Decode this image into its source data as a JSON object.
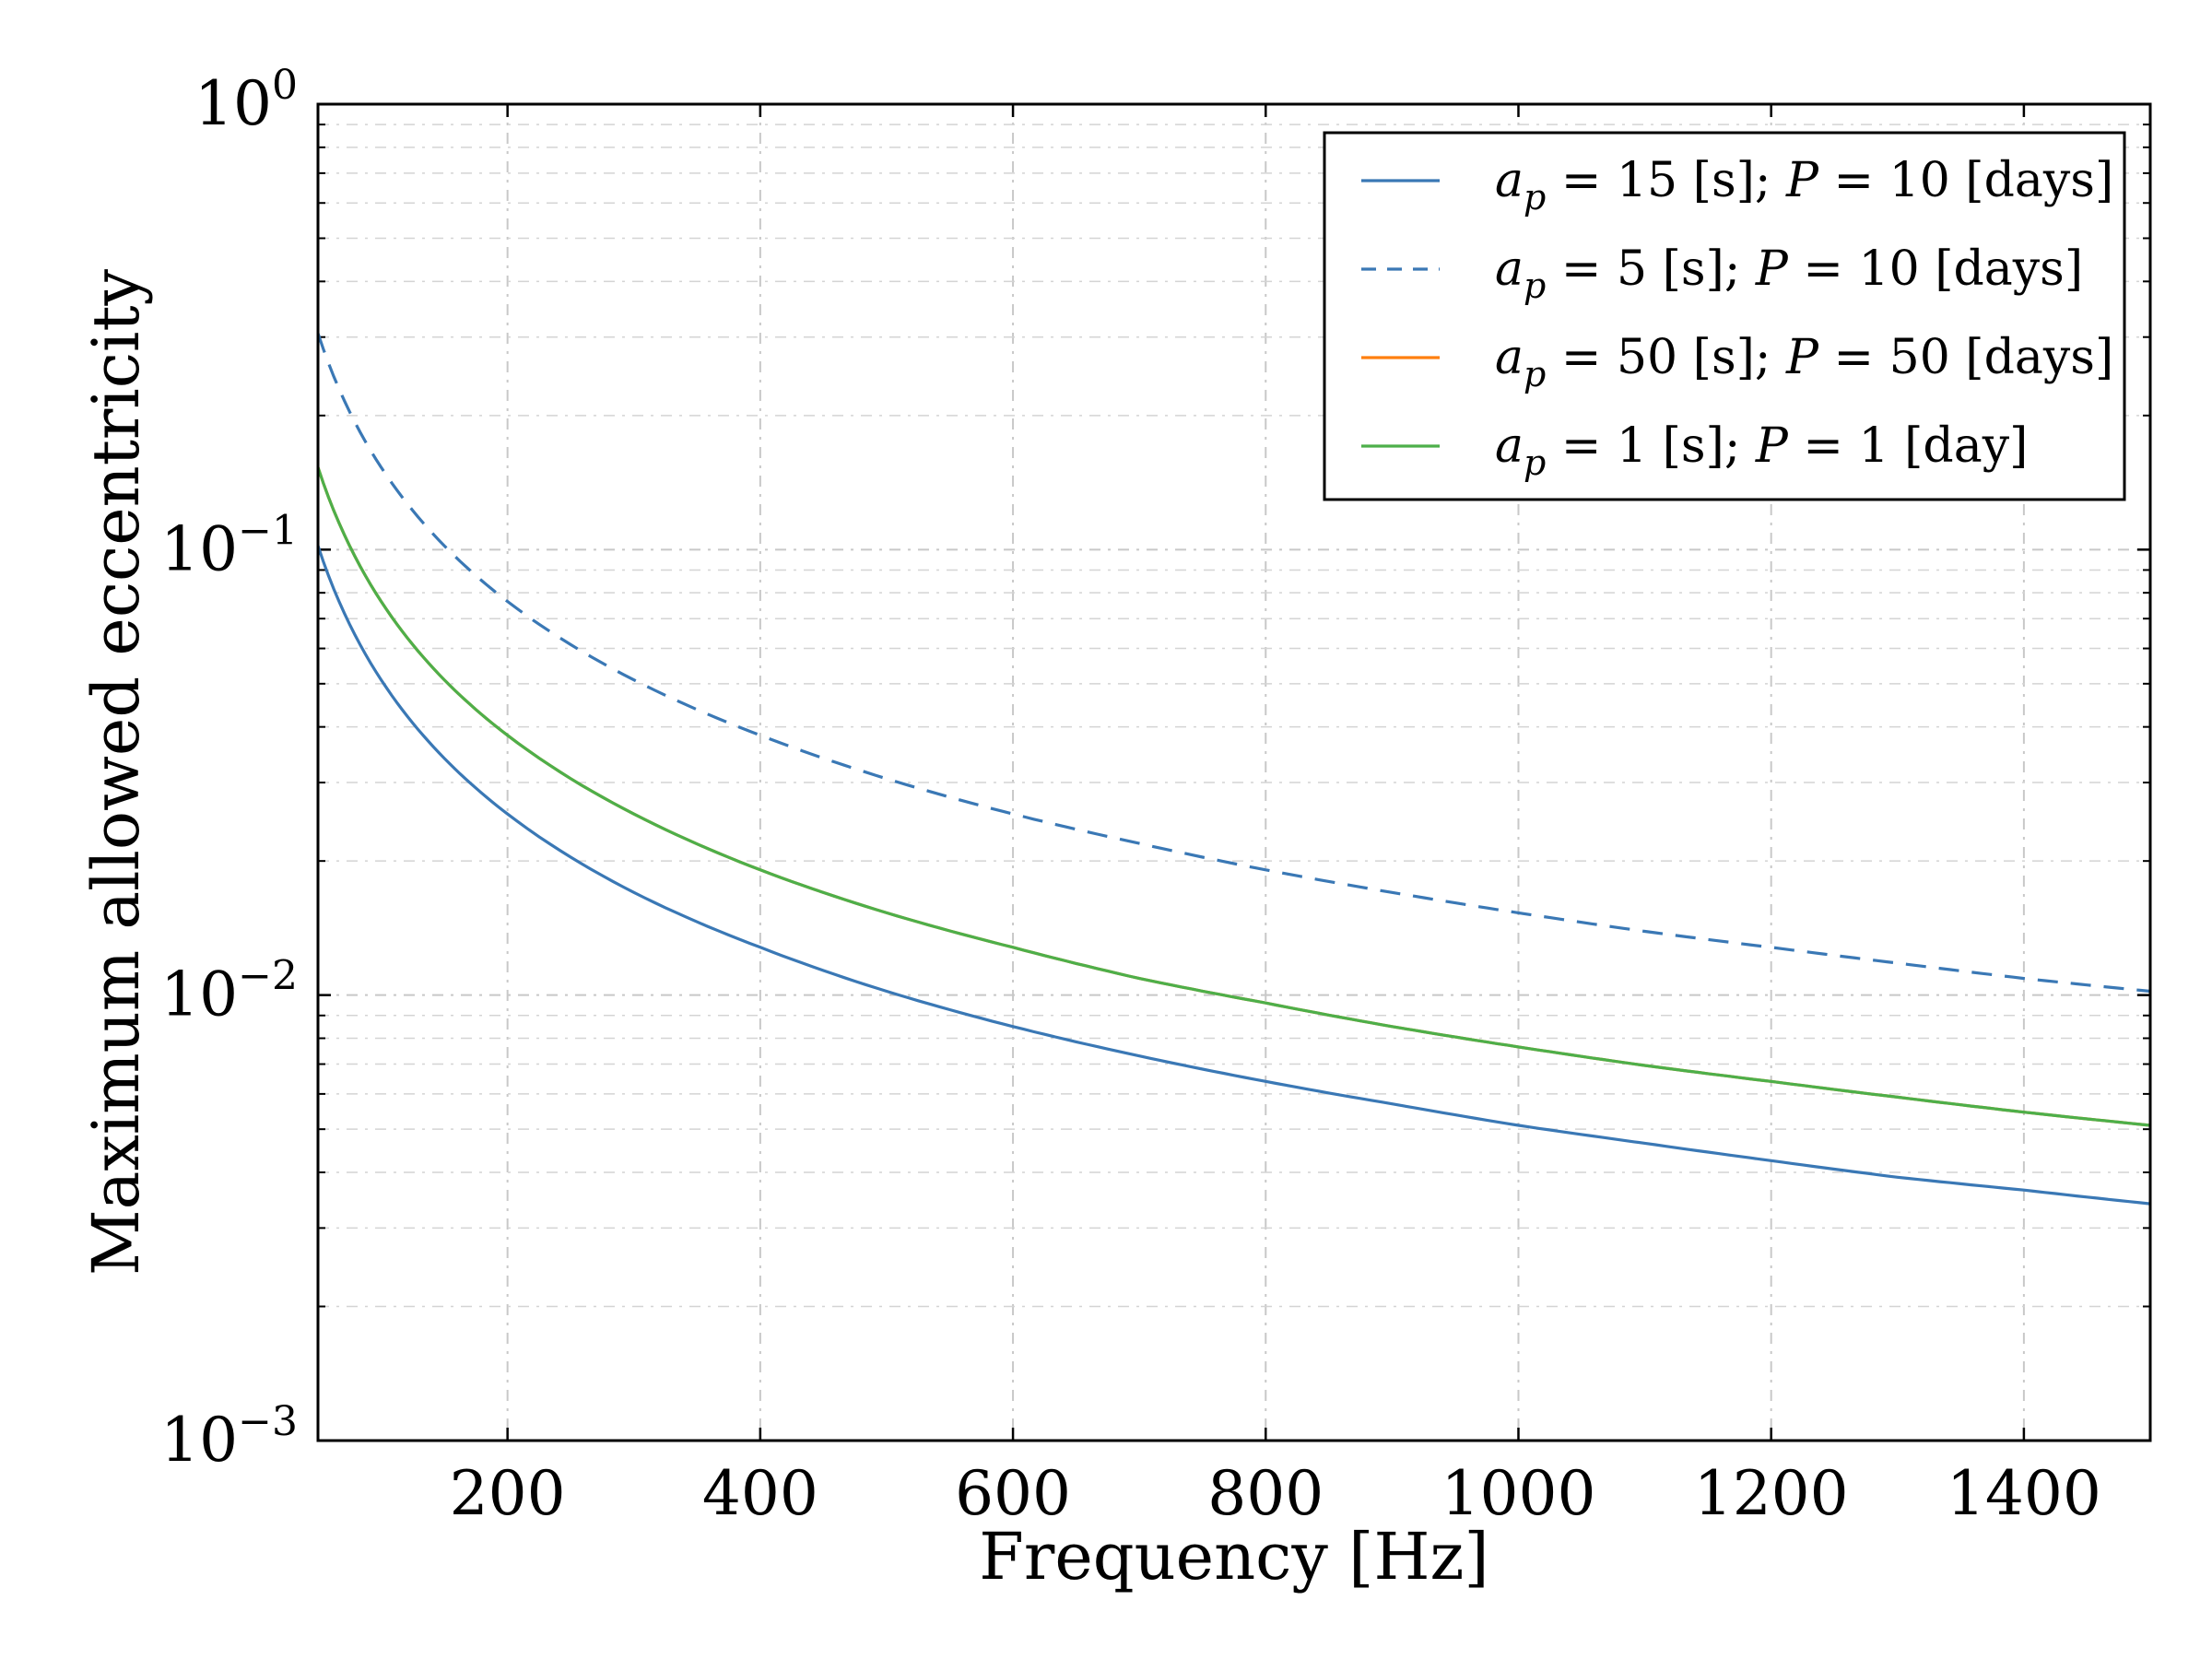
{
  "chart_data": {
    "type": "line",
    "title": "",
    "xlabel": "Frequency [Hz]",
    "ylabel": "Maximum allowed eccentricity",
    "xscale": "linear",
    "yscale": "log",
    "xlim": [
      50,
      1500
    ],
    "ylim": [
      0.001,
      1
    ],
    "grid": true,
    "legend_location": "top-right",
    "x_ticks": [
      {
        "value": 200,
        "label": "200"
      },
      {
        "value": 400,
        "label": "400"
      },
      {
        "value": 600,
        "label": "600"
      },
      {
        "value": 800,
        "label": "800"
      },
      {
        "value": 1000,
        "label": "1000"
      },
      {
        "value": 1200,
        "label": "1200"
      },
      {
        "value": 1400,
        "label": "1400"
      }
    ],
    "y_ticks": [
      {
        "value": 0.001,
        "base": "10",
        "exp": "−3"
      },
      {
        "value": 0.01,
        "base": "10",
        "exp": "−2"
      },
      {
        "value": 0.1,
        "base": "10",
        "exp": "−1"
      },
      {
        "value": 1,
        "base": "10",
        "exp": "0"
      }
    ],
    "x": [
      50,
      100,
      150,
      200,
      300,
      400,
      500,
      600,
      700,
      800,
      900,
      1000,
      1100,
      1200,
      1300,
      1400,
      1500
    ],
    "series": [
      {
        "name": "a_p = 15 [s]; P = 10 [days]",
        "legend": {
          "var1": "a",
          "sub": "p",
          "eq1": " = 15 [s]; ",
          "var2": "P",
          "eq2": " = 10 [days]"
        },
        "color": "#3a78b5",
        "dash": "solid",
        "values": [
          0.102,
          0.051,
          0.034,
          0.0255,
          0.017,
          0.0128,
          0.0102,
          0.0085,
          0.0073,
          0.0064,
          0.0057,
          0.0051,
          0.00465,
          0.00425,
          0.0039,
          0.00365,
          0.0034
        ]
      },
      {
        "name": "a_p = 5 [s]; P = 10 [days]",
        "legend": {
          "var1": "a",
          "sub": "p",
          "eq1": " = 5 [s]; ",
          "var2": "P",
          "eq2": " = 10 [days]"
        },
        "color": "#3a78b5",
        "dash": "dashed",
        "values": [
          0.306,
          0.153,
          0.102,
          0.0765,
          0.051,
          0.0383,
          0.0306,
          0.0255,
          0.0219,
          0.0191,
          0.017,
          0.0153,
          0.0139,
          0.0128,
          0.0118,
          0.0109,
          0.0102
        ]
      },
      {
        "name": "a_p = 50 [s]; P = 50 [days]",
        "legend": {
          "var1": "a",
          "sub": "p",
          "eq1": " = 50 [s]; ",
          "var2": "P",
          "eq2": " = 50 [days]"
        },
        "color": "#ff7f0e",
        "dash": "solid",
        "values": [
          0.153,
          0.0765,
          0.051,
          0.0383,
          0.0255,
          0.0191,
          0.0153,
          0.0128,
          0.0109,
          0.0096,
          0.0085,
          0.00765,
          0.00695,
          0.0064,
          0.0059,
          0.00546,
          0.0051
        ]
      },
      {
        "name": "a_p = 1 [s]; P = 1 [day]",
        "legend": {
          "var1": "a",
          "sub": "p",
          "eq1": " = 1 [s]; ",
          "var2": "P",
          "eq2": " = 1 [day]"
        },
        "color": "#4daf4a",
        "dash": "solid",
        "values": [
          0.153,
          0.0765,
          0.051,
          0.0383,
          0.0255,
          0.0191,
          0.0153,
          0.0128,
          0.0109,
          0.0096,
          0.0085,
          0.00765,
          0.00695,
          0.0064,
          0.0059,
          0.00546,
          0.0051
        ]
      }
    ]
  }
}
